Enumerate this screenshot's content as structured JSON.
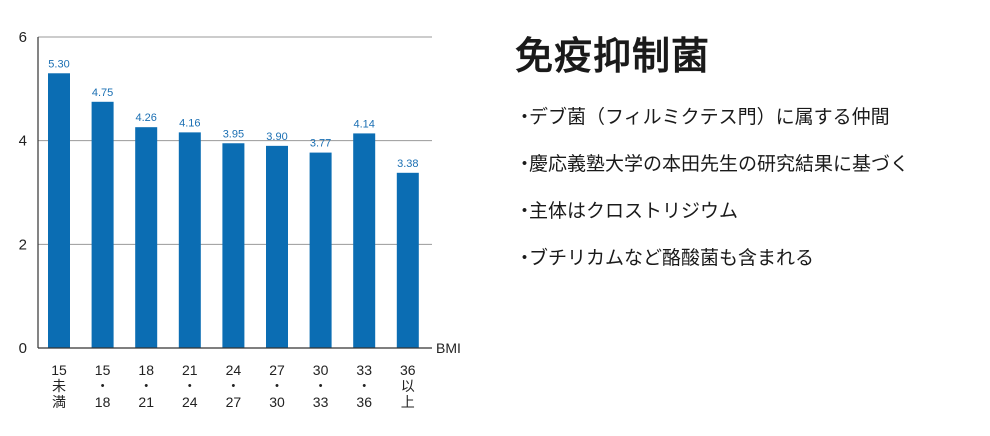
{
  "chart_data": {
    "type": "bar",
    "categories": [
      [
        "15",
        "未",
        "満"
      ],
      [
        "15",
        "・",
        "18"
      ],
      [
        "18",
        "・",
        "21"
      ],
      [
        "21",
        "・",
        "24"
      ],
      [
        "24",
        "・",
        "27"
      ],
      [
        "27",
        "・",
        "30"
      ],
      [
        "30",
        "・",
        "33"
      ],
      [
        "33",
        "・",
        "36"
      ],
      [
        "36",
        "以",
        "上"
      ]
    ],
    "values": [
      5.3,
      4.75,
      4.26,
      4.16,
      3.95,
      3.9,
      3.77,
      4.14,
      3.38
    ],
    "value_labels": [
      "5.30",
      "4.75",
      "4.26",
      "4.16",
      "3.95",
      "3.90",
      "3.77",
      "4.14",
      "3.38"
    ],
    "xlabel": "BMI",
    "ylabel": "",
    "ylim": [
      0,
      6
    ],
    "yticks": [
      0,
      2,
      4,
      6
    ],
    "grid": true,
    "bar_color": "#0b6db3",
    "label_color": "#1a6fb3"
  },
  "panel": {
    "title": "免疫抑制菌",
    "bullet_marker": "・",
    "items": [
      "デブ菌（フィルミクテス門）に属する仲間",
      "慶応義塾大学の本田先生の研究結果に基づく",
      "主体はクロストリジウム",
      "ブチリカムなど酪酸菌も含まれる"
    ]
  }
}
